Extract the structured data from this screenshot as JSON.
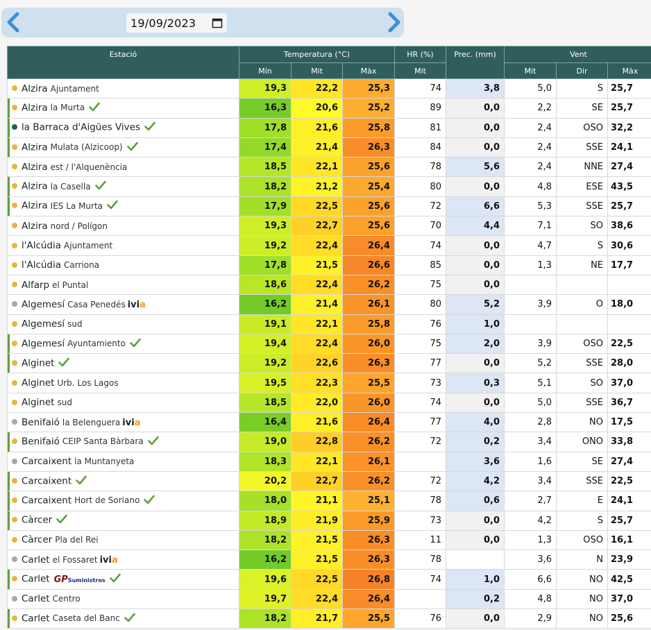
{
  "toolbar": {
    "date_value": "19/09/2023",
    "prev_icon": "chevron-left-icon",
    "next_icon": "chevron-right-icon",
    "calendar_icon": "calendar-icon"
  },
  "headers": {
    "station": "Estació",
    "temperature": "Temperatura (°C)",
    "hr": "HR (%)",
    "prec": "Prec. (mm)",
    "wind": "Vent",
    "t_min": "Mín",
    "t_mit": "Mit",
    "t_max": "Màx",
    "hr_mit": "Mit",
    "w_mit": "Mit",
    "w_dir": "Dir",
    "w_max": "Màx"
  },
  "colors": {
    "header_bg": "#2f5e5c",
    "dot_orange": "#e8b441",
    "dot_teal": "#1d5e63",
    "dot_gray": "#a8a8a8",
    "check_green": "#5f9f3a",
    "prec_positive": "#dce6f5",
    "prec_zero": "#f1f1f1"
  },
  "rows": [
    {
      "name": "Alzira",
      "sub": "Ajuntament",
      "dot": "orange",
      "check": false,
      "tag": "",
      "min": "19,3",
      "mit": "22,2",
      "max": "25,3",
      "hr": "74",
      "prec": "3,8",
      "wmit": "5,0",
      "wdir": "S",
      "wmax": "25,7"
    },
    {
      "name": "Alzira",
      "sub": "la Murta",
      "dot": "orange",
      "check": true,
      "tag": "",
      "min": "16,3",
      "mit": "20,6",
      "max": "25,2",
      "hr": "89",
      "prec": "0,0",
      "wmit": "2,2",
      "wdir": "SE",
      "wmax": "25,7"
    },
    {
      "name": "la Barraca d'Aigües Vives",
      "sub": "",
      "dot": "teal",
      "check": true,
      "tag": "",
      "min": "17,8",
      "mit": "21,6",
      "max": "25,8",
      "hr": "81",
      "prec": "0,0",
      "wmit": "2,4",
      "wdir": "OSO",
      "wmax": "32,2"
    },
    {
      "name": "Alzira",
      "sub": "Mulata (Alzicoop)",
      "dot": "orange",
      "check": true,
      "tag": "",
      "min": "17,4",
      "mit": "21,4",
      "max": "26,3",
      "hr": "84",
      "prec": "0,0",
      "wmit": "2,4",
      "wdir": "SSE",
      "wmax": "24,1"
    },
    {
      "name": "Alzira",
      "sub": "est / l'Alquenència",
      "dot": "orange",
      "check": false,
      "tag": "",
      "min": "18,5",
      "mit": "22,1",
      "max": "25,6",
      "hr": "78",
      "prec": "5,6",
      "wmit": "2,4",
      "wdir": "NNE",
      "wmax": "27,4"
    },
    {
      "name": "Alzira",
      "sub": "la Casella",
      "dot": "orange",
      "check": true,
      "tag": "",
      "min": "18,2",
      "mit": "21,2",
      "max": "25,4",
      "hr": "80",
      "prec": "0,0",
      "wmit": "4,8",
      "wdir": "ESE",
      "wmax": "43,5"
    },
    {
      "name": "Alzira",
      "sub": "IES La Murta",
      "dot": "orange",
      "check": true,
      "tag": "",
      "min": "17,9",
      "mit": "22,5",
      "max": "25,6",
      "hr": "72",
      "prec": "6,6",
      "wmit": "5,3",
      "wdir": "SSE",
      "wmax": "25,7"
    },
    {
      "name": "Alzira",
      "sub": "nord / Polígon",
      "dot": "orange",
      "check": false,
      "tag": "",
      "min": "19,3",
      "mit": "22,7",
      "max": "25,6",
      "hr": "70",
      "prec": "4,4",
      "wmit": "7,1",
      "wdir": "SO",
      "wmax": "38,6"
    },
    {
      "name": "l'Alcúdia",
      "sub": "Ajuntament",
      "dot": "orange",
      "check": false,
      "tag": "",
      "min": "19,2",
      "mit": "22,4",
      "max": "26,4",
      "hr": "74",
      "prec": "0,0",
      "wmit": "4,7",
      "wdir": "S",
      "wmax": "30,6"
    },
    {
      "name": "l'Alcúdia",
      "sub": "Carriona",
      "dot": "orange",
      "check": false,
      "tag": "",
      "min": "17,8",
      "mit": "21,5",
      "max": "26,6",
      "hr": "85",
      "prec": "0,0",
      "wmit": "1,3",
      "wdir": "NE",
      "wmax": "17,7"
    },
    {
      "name": "Alfarp",
      "sub": "el Puntal",
      "dot": "orange",
      "check": false,
      "tag": "",
      "min": "18,6",
      "mit": "22,4",
      "max": "26,2",
      "hr": "75",
      "prec": "0,0",
      "wmit": "",
      "wdir": "",
      "wmax": ""
    },
    {
      "name": "Algemesí",
      "sub": "Casa Penedés",
      "dot": "gray",
      "check": false,
      "tag": "ivia",
      "min": "16,2",
      "mit": "21,4",
      "max": "26,1",
      "hr": "80",
      "prec": "5,2",
      "wmit": "3,9",
      "wdir": "O",
      "wmax": "18,0"
    },
    {
      "name": "Algemesí",
      "sub": "sud",
      "dot": "orange",
      "check": false,
      "tag": "",
      "min": "19,1",
      "mit": "22,1",
      "max": "25,8",
      "hr": "76",
      "prec": "1,0",
      "wmit": "",
      "wdir": "",
      "wmax": ""
    },
    {
      "name": "Algemesí",
      "sub": "Ayuntamiento",
      "dot": "orange",
      "check": true,
      "tag": "",
      "min": "19,4",
      "mit": "22,4",
      "max": "26,0",
      "hr": "75",
      "prec": "2,0",
      "wmit": "3,9",
      "wdir": "OSO",
      "wmax": "22,5"
    },
    {
      "name": "Alginet",
      "sub": "",
      "dot": "orange",
      "check": true,
      "tag": "",
      "min": "19,2",
      "mit": "22,6",
      "max": "26,3",
      "hr": "77",
      "prec": "0,0",
      "wmit": "5,2",
      "wdir": "SSE",
      "wmax": "28,0"
    },
    {
      "name": "Alginet",
      "sub": "Urb. Los Lagos",
      "dot": "orange",
      "check": false,
      "tag": "",
      "min": "19,5",
      "mit": "22,3",
      "max": "25,5",
      "hr": "73",
      "prec": "0,3",
      "wmit": "5,1",
      "wdir": "SO",
      "wmax": "37,0"
    },
    {
      "name": "Alginet",
      "sub": "sud",
      "dot": "orange",
      "check": false,
      "tag": "",
      "min": "18,5",
      "mit": "22,0",
      "max": "26,0",
      "hr": "74",
      "prec": "0,0",
      "wmit": "5,0",
      "wdir": "SSE",
      "wmax": "36,7"
    },
    {
      "name": "Benifaió",
      "sub": "la Belenguera",
      "dot": "gray",
      "check": false,
      "tag": "ivia",
      "min": "16,4",
      "mit": "21,6",
      "max": "26,4",
      "hr": "77",
      "prec": "4,0",
      "wmit": "2,8",
      "wdir": "NO",
      "wmax": "17,5"
    },
    {
      "name": "Benifaió",
      "sub": "CEIP Santa Bàrbara",
      "dot": "orange",
      "check": true,
      "tag": "",
      "min": "19,0",
      "mit": "22,8",
      "max": "26,2",
      "hr": "72",
      "prec": "0,2",
      "wmit": "3,4",
      "wdir": "ONO",
      "wmax": "33,8"
    },
    {
      "name": "Carcaixent",
      "sub": "la Muntanyeta",
      "dot": "gray",
      "check": false,
      "tag": "",
      "min": "18,3",
      "mit": "22,1",
      "max": "26,1",
      "hr": "",
      "prec": "3,6",
      "wmit": "1,6",
      "wdir": "SE",
      "wmax": "27,4"
    },
    {
      "name": "Carcaixent",
      "sub": "",
      "dot": "orange",
      "check": true,
      "tag": "",
      "min": "20,2",
      "mit": "22,7",
      "max": "26,2",
      "hr": "72",
      "prec": "4,2",
      "wmit": "3,4",
      "wdir": "SSE",
      "wmax": "22,5"
    },
    {
      "name": "Carcaixent",
      "sub": "Hort de Soriano",
      "dot": "orange",
      "check": true,
      "tag": "",
      "min": "18,0",
      "mit": "21,1",
      "max": "25,1",
      "hr": "78",
      "prec": "0,6",
      "wmit": "2,7",
      "wdir": "E",
      "wmax": "24,1"
    },
    {
      "name": "Càrcer",
      "sub": "",
      "dot": "orange",
      "check": true,
      "tag": "",
      "min": "18,9",
      "mit": "21,9",
      "max": "25,9",
      "hr": "73",
      "prec": "0,0",
      "wmit": "4,2",
      "wdir": "S",
      "wmax": "25,7"
    },
    {
      "name": "Càrcer",
      "sub": "Pla del Rei",
      "dot": "orange",
      "check": false,
      "tag": "",
      "min": "18,2",
      "mit": "21,5",
      "max": "26,3",
      "hr": "11",
      "prec": "0,0",
      "wmit": "1,3",
      "wdir": "OSO",
      "wmax": "16,1"
    },
    {
      "name": "Carlet",
      "sub": "el Fossaret",
      "dot": "gray",
      "check": false,
      "tag": "ivia",
      "min": "16,2",
      "mit": "21,5",
      "max": "26,3",
      "hr": "78",
      "prec": "",
      "wmit": "3,6",
      "wdir": "N",
      "wmax": "23,9"
    },
    {
      "name": "Carlet",
      "sub": "",
      "dot": "orange",
      "check": true,
      "tag": "gp",
      "min": "19,6",
      "mit": "22,5",
      "max": "26,8",
      "hr": "74",
      "prec": "1,0",
      "wmit": "6,6",
      "wdir": "NO",
      "wmax": "42,5"
    },
    {
      "name": "Carlet",
      "sub": "Centro",
      "dot": "gray",
      "check": false,
      "tag": "",
      "min": "19,7",
      "mit": "22,4",
      "max": "26,4",
      "hr": "",
      "prec": "0,2",
      "wmit": "4,8",
      "wdir": "NO",
      "wmax": "37,0"
    },
    {
      "name": "Carlet",
      "sub": "Caseta del Banc",
      "dot": "orange",
      "check": true,
      "tag": "",
      "min": "18,2",
      "mit": "21,7",
      "max": "25,5",
      "hr": "76",
      "prec": "0,0",
      "wmit": "2,9",
      "wdir": "NO",
      "wmax": "25,6"
    }
  ],
  "logos": {
    "ivia_prefix": "ivi",
    "ivia_suffix": "a",
    "gp_main": "GP",
    "gp_small": "Suministros"
  }
}
